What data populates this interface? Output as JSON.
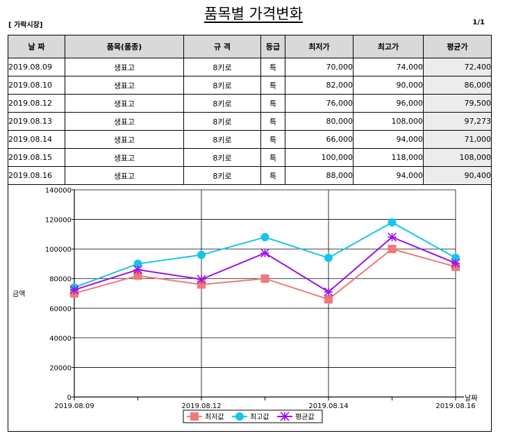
{
  "title": "품목별 가격변화",
  "market_label": "[ 가락시장]",
  "page_indicator": "1/1",
  "table": {
    "headers": [
      "날 짜",
      "품목(품종)",
      "규 격",
      "등급",
      "최저가",
      "최고가",
      "평균가"
    ],
    "rows": [
      [
        "2019.08.09",
        "생표고",
        "8키로",
        "특",
        "70,000",
        "74,000",
        "72,400"
      ],
      [
        "2019.08.10",
        "생표고",
        "8키로",
        "특",
        "82,000",
        "90,000",
        "86,000"
      ],
      [
        "2019.08.12",
        "생표고",
        "8키로",
        "특",
        "76,000",
        "96,000",
        "79,500"
      ],
      [
        "2019.08.13",
        "생표고",
        "8키로",
        "특",
        "80,000",
        "108,000",
        "97,273"
      ],
      [
        "2019.08.14",
        "생표고",
        "8키로",
        "특",
        "66,000",
        "94,000",
        "71,000"
      ],
      [
        "2019.08.15",
        "생표고",
        "8키로",
        "특",
        "100,000",
        "118,000",
        "108,000"
      ],
      [
        "2019.08.16",
        "생표고",
        "8키로",
        "특",
        "88,000",
        "94,000",
        "90,400"
      ]
    ]
  },
  "chart_data": {
    "type": "line",
    "categories": [
      "2019.08.09",
      "2019.08.10",
      "2019.08.12",
      "2019.08.13",
      "2019.08.14",
      "2019.08.15",
      "2019.08.16"
    ],
    "x_tick_labels": [
      "2019.08.09",
      "2019.08.12",
      "2019.08.14",
      "2019.08.16"
    ],
    "y_ticks": [
      "0",
      "20000",
      "40000",
      "60000",
      "80000",
      "100000",
      "120000",
      "140000"
    ],
    "ylim": [
      0,
      140000
    ],
    "ylabel": "금액",
    "xlabel": "날짜",
    "grid": true,
    "legend_position": "bottom",
    "series": [
      {
        "name": "최저값",
        "color": "#f07878",
        "marker": "square",
        "values": [
          70000,
          82000,
          76000,
          80000,
          66000,
          100000,
          88000
        ]
      },
      {
        "name": "최고값",
        "color": "#19c3ec",
        "marker": "circle",
        "values": [
          74000,
          90000,
          96000,
          108000,
          94000,
          118000,
          94000
        ]
      },
      {
        "name": "평균값",
        "color": "#9b10e6",
        "marker": "star",
        "values": [
          72400,
          86000,
          79500,
          97273,
          71000,
          108000,
          90400
        ]
      }
    ]
  }
}
